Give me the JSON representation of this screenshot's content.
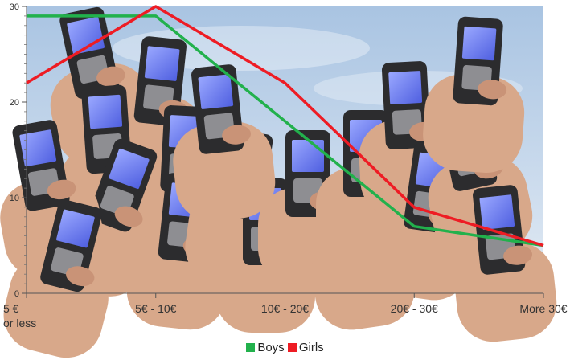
{
  "chart_data": {
    "type": "line",
    "title": "",
    "xlabel": "",
    "ylabel": "",
    "categories": [
      "5 €\nor less",
      "5€ - 10€",
      "10€ - 20€",
      "20€ - 30€",
      "More 30€"
    ],
    "series": [
      {
        "name": "Boys",
        "color": "#22b14c",
        "values": [
          29,
          29,
          18,
          7,
          5
        ]
      },
      {
        "name": "Girls",
        "color": "#ee1c24",
        "values": [
          22,
          30,
          22,
          9,
          5
        ]
      }
    ],
    "ylim": [
      0,
      30
    ],
    "yticks": [
      0,
      10,
      20,
      30
    ],
    "grid": false,
    "legend_position": "bottom",
    "background": "photograph of many raised hands holding mobile phones against a blue sky"
  }
}
